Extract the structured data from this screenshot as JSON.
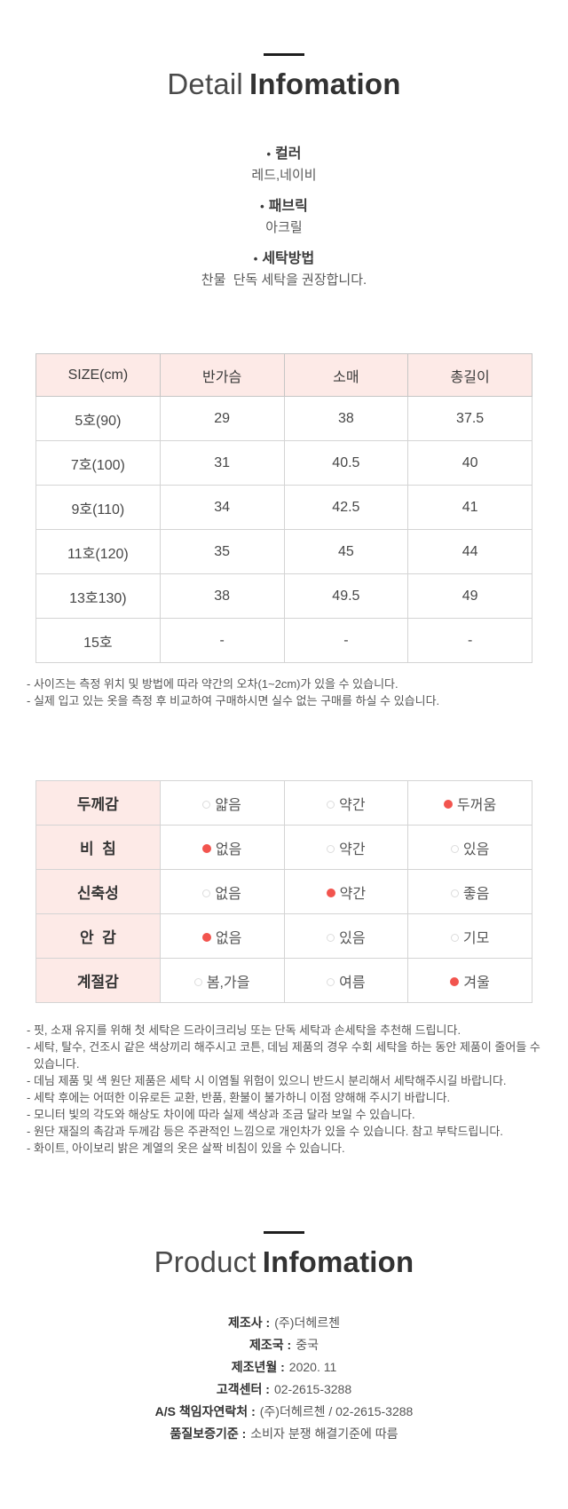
{
  "detail_header": {
    "word_light": "Detail",
    "word_bold": "Infomation"
  },
  "product_header": {
    "word_light": "Product",
    "word_bold": "Infomation"
  },
  "bullet": "•",
  "detail_sections": [
    {
      "label": "컬러",
      "value": "레드,네이비"
    },
    {
      "label": "패브릭",
      "value": "아크릴"
    },
    {
      "label": "세탁방법",
      "value": "찬물  단독 세탁을 권장합니다."
    }
  ],
  "size_table": {
    "headers": [
      "SIZE(cm)",
      "반가슴",
      "소매",
      "총길이"
    ],
    "rows": [
      [
        "5호(90)",
        "29",
        "38",
        "37.5"
      ],
      [
        "7호(100)",
        "31",
        "40.5",
        "40"
      ],
      [
        "9호(110)",
        "34",
        "42.5",
        "41"
      ],
      [
        "11호(120)",
        "35",
        "45",
        "44"
      ],
      [
        "13호130)",
        "38",
        "49.5",
        "49"
      ],
      [
        "15호",
        "-",
        "-",
        "-"
      ]
    ]
  },
  "size_notes": [
    "- 사이즈는 측정 위치 및 방법에 따라 약간의 오차(1~2cm)가 있을 수 있습니다.",
    "- 실제 입고 있는 옷을 측정 후 비교하여 구매하시면 실수 없는 구매를 하실 수 있습니다."
  ],
  "attribute_table": {
    "rows": [
      {
        "label": "두께감",
        "options": [
          {
            "text": "얇음",
            "selected": false
          },
          {
            "text": "약간",
            "selected": false
          },
          {
            "text": "두꺼움",
            "selected": true
          }
        ]
      },
      {
        "label": "비  침",
        "options": [
          {
            "text": "없음",
            "selected": true
          },
          {
            "text": "약간",
            "selected": false
          },
          {
            "text": "있음",
            "selected": false
          }
        ]
      },
      {
        "label": "신축성",
        "options": [
          {
            "text": "없음",
            "selected": false
          },
          {
            "text": "약간",
            "selected": true
          },
          {
            "text": "좋음",
            "selected": false
          }
        ]
      },
      {
        "label": "안  감",
        "options": [
          {
            "text": "없음",
            "selected": true
          },
          {
            "text": "있음",
            "selected": false
          },
          {
            "text": "기모",
            "selected": false
          }
        ]
      },
      {
        "label": "계절감",
        "options": [
          {
            "text": "봄,가을",
            "selected": false
          },
          {
            "text": "여름",
            "selected": false
          },
          {
            "text": "겨울",
            "selected": true
          }
        ]
      }
    ]
  },
  "care_notes": [
    "- 핏, 소재 유지를 위해 첫 세탁은 드라이크리닝 또는 단독 세탁과 손세탁을 추천해 드립니다.",
    "- 세탁, 탈수, 건조시 같은 색상끼리 해주시고 코튼, 데님 제품의 경우 수회 세탁을 하는 동안 제품이 줄어들 수 있습니다.",
    "- 데님 제품 및 색 원단 제품은 세탁 시 이염될 위험이 있으니 반드시 분리해서 세탁해주시길 바랍니다.",
    "- 세탁 후에는 어떠한 이유로든 교환, 반품, 환불이 불가하니 이점 양해해 주시기 바랍니다.",
    "- 모니터 빛의 각도와 해상도 차이에 따라 실제 색상과 조금 달라 보일 수 있습니다.",
    "- 원단 재질의 촉감과 두께감 등은 주관적인 느낌으로 개인차가 있을 수 있습니다. 참고 부탁드립니다.",
    "- 화이트, 아이보리 밝은 계열의 옷은 살짝 비침이 있을 수 있습니다."
  ],
  "product_info": [
    {
      "label": "제조사 :",
      "value": "(주)더헤르첸"
    },
    {
      "label": "제조국 :",
      "value": "중국"
    },
    {
      "label": "제조년월 :",
      "value": "2020. 11"
    },
    {
      "label": "고객센터 :",
      "value": "02-2615-3288"
    },
    {
      "label": "A/S 책임자연락처 :",
      "value": "(주)더헤르첸 / 02-2615-3288"
    },
    {
      "label": "품질보증기준 :",
      "value": "소비자 분쟁 해결기준에 따름"
    }
  ],
  "colors": {
    "accent_red": "#f2544e",
    "header_pink": "#fdeae7",
    "border_gray": "#d4d4d4"
  }
}
